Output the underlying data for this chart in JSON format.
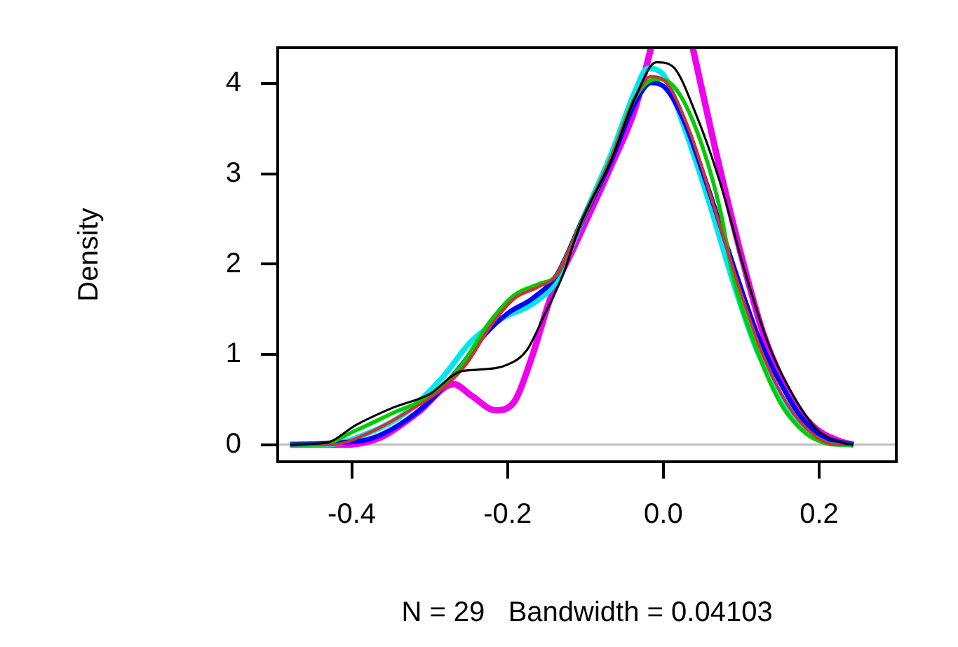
{
  "chart_data": {
    "type": "line",
    "xlabel": "N = 29   Bandwidth = 0.04103",
    "ylabel": "Density",
    "xlim": [
      -0.495,
      0.299
    ],
    "ylim": [
      -0.19,
      4.4
    ],
    "xticks": [
      {
        "value": -0.4,
        "label": "-0.4"
      },
      {
        "value": -0.2,
        "label": "-0.2"
      },
      {
        "value": 0,
        "label": "0.0"
      },
      {
        "value": 0.2,
        "label": "0.2"
      }
    ],
    "yticks": [
      0,
      1,
      2,
      3,
      4
    ],
    "grid": false,
    "legend": false,
    "marker": "none",
    "line_style": "solid",
    "ref_lines": [
      {
        "axis": "y",
        "value": 0,
        "color": "#bebebe"
      }
    ],
    "series": [
      {
        "color": "#000000",
        "x": [
          -0.479,
          -0.433,
          -0.394,
          -0.347,
          -0.3,
          -0.261,
          -0.238,
          -0.199,
          -0.175,
          -0.153,
          -0.129,
          -0.106,
          -0.067,
          -0.036,
          -0.009,
          0.011,
          0.042,
          0.073,
          0.104,
          0.135,
          0.167,
          0.198,
          0.229,
          0.244
        ],
        "values": [
          0,
          0.02,
          0.22,
          0.41,
          0.56,
          0.81,
          0.83,
          0.89,
          1.05,
          1.43,
          1.88,
          2.45,
          3.15,
          3.85,
          4.24,
          4.2,
          3.66,
          2.9,
          1.94,
          1.11,
          0.54,
          0.16,
          0.02,
          0
        ]
      },
      {
        "color": "#cd3333",
        "x": [
          -0.479,
          -0.425,
          -0.378,
          -0.331,
          -0.285,
          -0.253,
          -0.222,
          -0.191,
          -0.16,
          -0.137,
          -0.106,
          -0.067,
          -0.036,
          -0.016,
          0.003,
          0.034,
          0.065,
          0.097,
          0.128,
          0.159,
          0.19,
          0.221,
          0.244
        ],
        "values": [
          0,
          0,
          0.13,
          0.35,
          0.61,
          0.89,
          1.31,
          1.62,
          1.75,
          1.88,
          2.45,
          3.18,
          3.85,
          4.08,
          4.02,
          3.47,
          2.64,
          1.75,
          0.99,
          0.45,
          0.13,
          0,
          0
        ]
      },
      {
        "color": "#00cd00",
        "x": [
          -0.479,
          -0.44,
          -0.394,
          -0.347,
          -0.3,
          -0.261,
          -0.222,
          -0.191,
          -0.16,
          -0.137,
          -0.106,
          -0.067,
          -0.036,
          -0.01,
          0.01,
          0.042,
          0.073,
          0.089,
          0.12,
          0.151,
          0.182,
          0.206,
          0.221,
          0.244
        ],
        "values": [
          0,
          0,
          0.16,
          0.35,
          0.54,
          0.86,
          1.37,
          1.66,
          1.78,
          1.88,
          2.45,
          3.18,
          3.85,
          4.05,
          4.0,
          3.5,
          2.6,
          1.88,
          1.05,
          0.45,
          0.13,
          0.02,
          0,
          0
        ]
      },
      {
        "color": "#0000ff",
        "x": [
          -0.479,
          -0.425,
          -0.378,
          -0.339,
          -0.3,
          -0.261,
          -0.23,
          -0.199,
          -0.168,
          -0.137,
          -0.106,
          -0.067,
          -0.036,
          -0.016,
          0.003,
          0.026,
          0.058,
          0.089,
          0.12,
          0.151,
          0.182,
          0.213,
          0.244
        ],
        "values": [
          0,
          0.02,
          0.06,
          0.22,
          0.48,
          0.86,
          1.21,
          1.46,
          1.62,
          1.88,
          2.45,
          3.15,
          3.79,
          4.01,
          3.95,
          3.6,
          2.83,
          2.01,
          1.24,
          0.67,
          0.25,
          0.06,
          0
        ]
      },
      {
        "color": "#00e5ee",
        "x": [
          -0.479,
          -0.433,
          -0.378,
          -0.331,
          -0.285,
          -0.246,
          -0.207,
          -0.168,
          -0.137,
          -0.106,
          -0.067,
          -0.036,
          -0.02,
          -0.001,
          0.026,
          0.058,
          0.089,
          0.12,
          0.151,
          0.182,
          0.213,
          0.237,
          0.244
        ],
        "values": [
          0,
          0,
          0.13,
          0.35,
          0.73,
          1.15,
          1.4,
          1.56,
          1.82,
          2.45,
          3.22,
          3.92,
          4.17,
          4.11,
          3.54,
          2.71,
          1.82,
          1.05,
          0.54,
          0.19,
          0.03,
          0,
          0
        ]
      },
      {
        "color": "#ee00ee",
        "x": [
          -0.479,
          -0.409,
          -0.363,
          -0.316,
          -0.269,
          -0.246,
          -0.215,
          -0.191,
          -0.168,
          -0.145,
          -0.114,
          -0.067,
          -0.036,
          -0.016,
          0.011,
          0.038,
          0.065,
          0.097,
          0.128,
          0.159,
          0.19,
          0.229,
          0.244
        ],
        "values": [
          0,
          0,
          0.08,
          0.35,
          0.67,
          0.54,
          0.38,
          0.48,
          0.99,
          1.62,
          2.2,
          3.09,
          3.73,
          4.39,
          null,
          4.39,
          3.34,
          2.2,
          1.24,
          0.61,
          0.22,
          0.03,
          0
        ]
      }
    ]
  }
}
